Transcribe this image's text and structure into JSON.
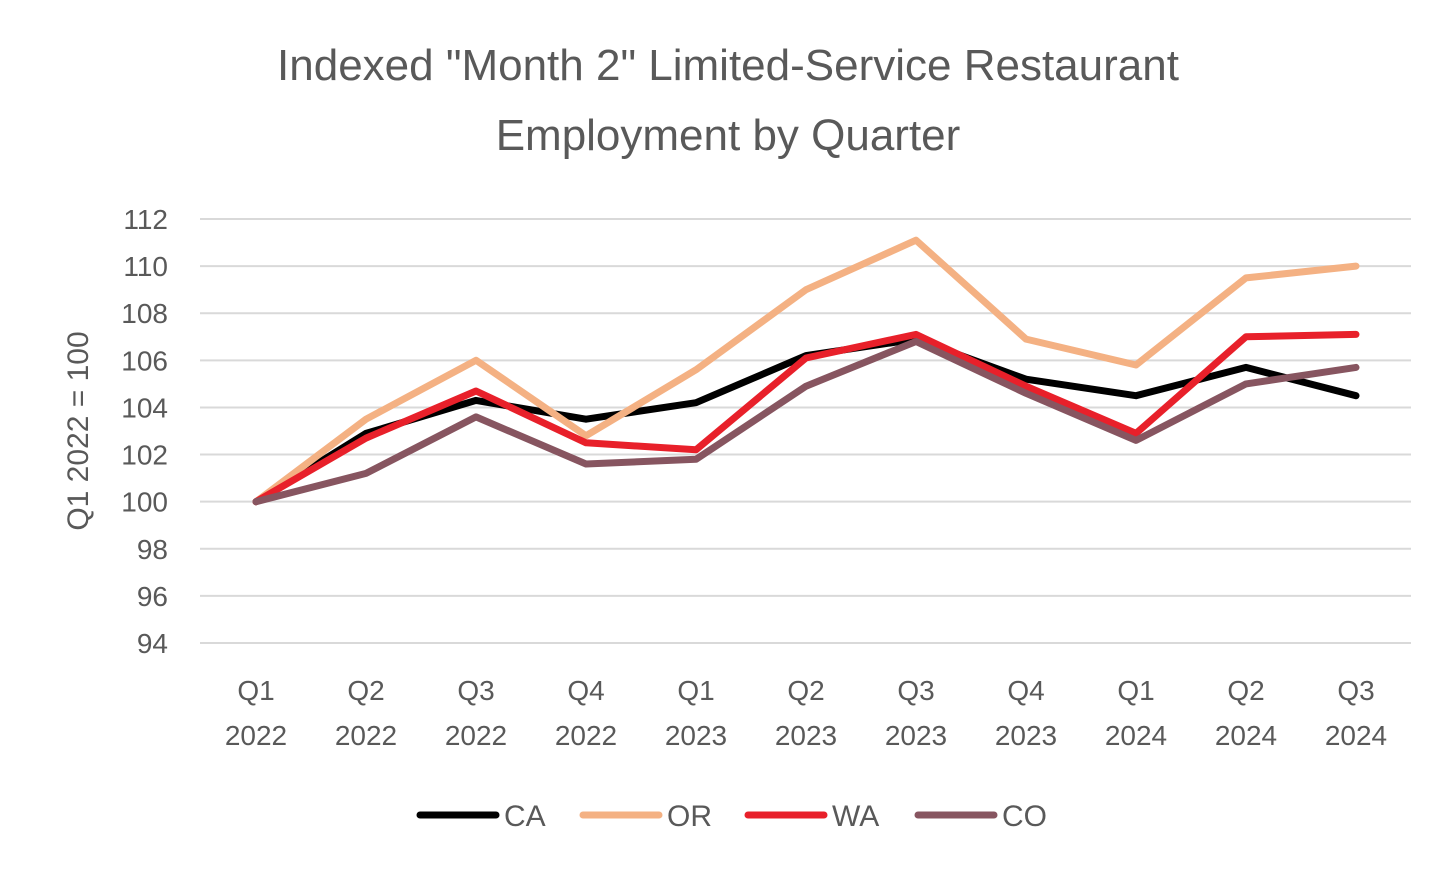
{
  "chart_data": {
    "type": "line",
    "title": "Indexed \"Month 2\" Limited-Service Restaurant Employment by Quarter",
    "title_lines": [
      "Indexed \"Month 2\" Limited-Service Restaurant",
      "Employment by Quarter"
    ],
    "xlabel": "",
    "ylabel": "Q1 2022 = 100",
    "ylim": [
      94,
      112
    ],
    "yticks": [
      94,
      96,
      98,
      100,
      102,
      104,
      106,
      108,
      110,
      112
    ],
    "grid": true,
    "legend_position": "bottom",
    "categories": [
      [
        "Q1",
        "2022"
      ],
      [
        "Q2",
        "2022"
      ],
      [
        "Q3",
        "2022"
      ],
      [
        "Q4",
        "2022"
      ],
      [
        "Q1",
        "2023"
      ],
      [
        "Q2",
        "2023"
      ],
      [
        "Q3",
        "2023"
      ],
      [
        "Q4",
        "2023"
      ],
      [
        "Q1",
        "2024"
      ],
      [
        "Q2",
        "2024"
      ],
      [
        "Q3",
        "2024"
      ]
    ],
    "series": [
      {
        "name": "CA",
        "color": "#000000",
        "values": [
          100,
          102.9,
          104.3,
          103.5,
          104.2,
          106.2,
          106.9,
          105.2,
          104.5,
          105.7,
          104.5
        ]
      },
      {
        "name": "OR",
        "color": "#f4b183",
        "values": [
          100,
          103.5,
          106.0,
          102.8,
          105.6,
          109.0,
          111.1,
          106.9,
          105.8,
          109.5,
          110.0
        ]
      },
      {
        "name": "WA",
        "color": "#e8202a",
        "values": [
          100,
          102.7,
          104.7,
          102.5,
          102.2,
          106.1,
          107.1,
          104.9,
          102.9,
          107.0,
          107.1
        ]
      },
      {
        "name": "CO",
        "color": "#875560",
        "values": [
          100,
          101.2,
          103.6,
          101.6,
          101.8,
          104.9,
          106.8,
          104.6,
          102.6,
          105.0,
          105.7
        ]
      }
    ]
  }
}
